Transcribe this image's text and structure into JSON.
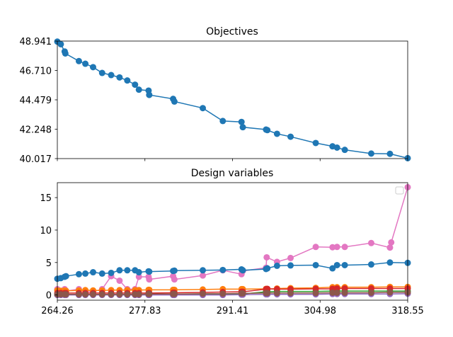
{
  "figure": {
    "background": "#ffffff"
  },
  "chart_data": [
    {
      "type": "line",
      "title": "Objectives",
      "xlabel": "",
      "ylabel": "",
      "xlim": [
        264.26,
        318.55
      ],
      "ylim": [
        40.017,
        48.941
      ],
      "xticks": [
        "264.26",
        "277.83",
        "291.41",
        "304.98",
        "318.55"
      ],
      "yticks": [
        "40.017",
        "42.248",
        "44.479",
        "46.710",
        "48.941"
      ],
      "show_xtick_labels": false,
      "grid": false,
      "marker": "circle",
      "series": [
        {
          "color": "#1f77b4",
          "points": [
            [
              264.26,
              48.9
            ],
            [
              264.8,
              48.7
            ],
            [
              265.4,
              48.15
            ],
            [
              265.5,
              48.0
            ],
            [
              267.6,
              47.42
            ],
            [
              268.6,
              47.22
            ],
            [
              269.8,
              46.96
            ],
            [
              271.2,
              46.52
            ],
            [
              272.6,
              46.36
            ],
            [
              273.9,
              46.18
            ],
            [
              275.1,
              45.95
            ],
            [
              276.3,
              45.63
            ],
            [
              276.9,
              45.25
            ],
            [
              278.4,
              45.18
            ],
            [
              278.5,
              44.85
            ],
            [
              282.2,
              44.55
            ],
            [
              282.4,
              44.35
            ],
            [
              286.8,
              43.85
            ],
            [
              289.9,
              42.87
            ],
            [
              292.8,
              42.8
            ],
            [
              293.0,
              42.4
            ],
            [
              296.6,
              42.22
            ],
            [
              296.8,
              42.18
            ],
            [
              298.3,
              41.9
            ],
            [
              300.4,
              41.68
            ],
            [
              304.3,
              41.2
            ],
            [
              306.9,
              40.95
            ],
            [
              307.6,
              40.85
            ],
            [
              308.8,
              40.68
            ],
            [
              312.9,
              40.4
            ],
            [
              315.8,
              40.38
            ],
            [
              318.55,
              40.05
            ]
          ]
        }
      ]
    },
    {
      "type": "line",
      "title": "Design variables",
      "xlabel": "",
      "ylabel": "",
      "xlim": [
        264.26,
        318.55
      ],
      "ylim": [
        -0.8,
        17.3
      ],
      "xticks": [
        "264.26",
        "277.83",
        "291.41",
        "304.98",
        "318.55"
      ],
      "yticks": [
        "0",
        "5",
        "10",
        "15"
      ],
      "yticks_values": [
        0,
        5,
        10,
        15
      ],
      "grid": false,
      "legend": "top-right (empty)",
      "marker": "circle",
      "series": [
        {
          "color": "#e377c2",
          "points": [
            [
              264.26,
              0.9
            ],
            [
              264.8,
              0.6
            ],
            [
              265.4,
              0.9
            ],
            [
              265.6,
              0.6
            ],
            [
              267.6,
              0.9
            ],
            [
              268.6,
              0.6
            ],
            [
              269.8,
              0.5
            ],
            [
              271.2,
              0.9
            ],
            [
              272.6,
              2.9
            ],
            [
              273.9,
              2.2
            ],
            [
              275.1,
              0.9
            ],
            [
              276.3,
              0.9
            ],
            [
              276.9,
              2.8
            ],
            [
              278.4,
              2.8
            ],
            [
              278.5,
              2.4
            ],
            [
              282.2,
              2.9
            ],
            [
              282.4,
              2.4
            ],
            [
              286.8,
              3.0
            ],
            [
              289.9,
              3.8
            ],
            [
              292.8,
              3.2
            ],
            [
              293.0,
              3.7
            ],
            [
              296.6,
              4.2
            ],
            [
              296.7,
              5.8
            ],
            [
              298.3,
              5.1
            ],
            [
              300.4,
              5.7
            ],
            [
              304.3,
              7.4
            ],
            [
              306.9,
              7.35
            ],
            [
              307.6,
              7.4
            ],
            [
              308.8,
              7.4
            ],
            [
              312.9,
              8.0
            ],
            [
              315.8,
              7.3
            ],
            [
              316.0,
              8.1
            ],
            [
              318.55,
              16.6
            ]
          ]
        },
        {
          "color": "#1f77b4",
          "points": [
            [
              264.26,
              2.5
            ],
            [
              264.8,
              2.6
            ],
            [
              265.4,
              2.8
            ],
            [
              265.6,
              2.9
            ],
            [
              267.6,
              3.2
            ],
            [
              268.6,
              3.3
            ],
            [
              269.8,
              3.5
            ],
            [
              271.2,
              3.3
            ],
            [
              272.6,
              3.4
            ],
            [
              273.9,
              3.8
            ],
            [
              275.1,
              3.8
            ],
            [
              276.3,
              3.8
            ],
            [
              276.9,
              3.5
            ],
            [
              278.4,
              3.65
            ],
            [
              278.5,
              3.6
            ],
            [
              282.2,
              3.7
            ],
            [
              282.4,
              3.75
            ],
            [
              286.8,
              3.8
            ],
            [
              289.9,
              3.85
            ],
            [
              292.8,
              3.95
            ],
            [
              293.0,
              3.8
            ],
            [
              296.6,
              4.0
            ],
            [
              296.8,
              4.1
            ],
            [
              298.3,
              4.5
            ],
            [
              300.4,
              4.55
            ],
            [
              304.3,
              4.6
            ],
            [
              306.9,
              4.1
            ],
            [
              307.6,
              4.6
            ],
            [
              308.8,
              4.6
            ],
            [
              312.9,
              4.7
            ],
            [
              315.8,
              5.0
            ],
            [
              318.55,
              4.95
            ]
          ]
        },
        {
          "color": "#ff7f0e",
          "points": [
            [
              264.26,
              0.7
            ],
            [
              264.8,
              0.65
            ],
            [
              265.4,
              0.7
            ],
            [
              265.6,
              0.65
            ],
            [
              267.6,
              0.7
            ],
            [
              268.6,
              0.75
            ],
            [
              269.8,
              0.7
            ],
            [
              271.2,
              0.7
            ],
            [
              272.6,
              0.75
            ],
            [
              273.9,
              0.75
            ],
            [
              275.1,
              0.75
            ],
            [
              276.3,
              0.75
            ],
            [
              276.9,
              0.75
            ],
            [
              278.4,
              0.8
            ],
            [
              278.5,
              0.8
            ],
            [
              282.2,
              0.8
            ],
            [
              282.4,
              0.8
            ],
            [
              286.8,
              0.85
            ],
            [
              289.9,
              0.9
            ],
            [
              292.8,
              0.9
            ],
            [
              293.0,
              0.9
            ],
            [
              296.6,
              0.95
            ],
            [
              296.8,
              0.9
            ],
            [
              298.3,
              1.0
            ],
            [
              300.4,
              1.05
            ],
            [
              304.3,
              1.1
            ],
            [
              306.9,
              1.2
            ],
            [
              307.6,
              1.2
            ],
            [
              308.8,
              1.2
            ],
            [
              312.9,
              1.2
            ],
            [
              315.8,
              1.25
            ],
            [
              318.55,
              1.25
            ]
          ]
        },
        {
          "color": "#2ca02c",
          "points": [
            [
              264.26,
              0.05
            ],
            [
              264.8,
              0.05
            ],
            [
              265.4,
              0.05
            ],
            [
              265.6,
              0.05
            ],
            [
              267.6,
              0.05
            ],
            [
              268.6,
              0.05
            ],
            [
              269.8,
              0.05
            ],
            [
              271.2,
              0.05
            ],
            [
              272.6,
              0.05
            ],
            [
              273.9,
              0.05
            ],
            [
              275.1,
              0.05
            ],
            [
              276.3,
              0.05
            ],
            [
              276.9,
              0.05
            ],
            [
              278.4,
              0.05
            ],
            [
              278.5,
              0.05
            ],
            [
              282.2,
              0.05
            ],
            [
              282.4,
              0.05
            ],
            [
              286.8,
              0.1
            ],
            [
              289.9,
              0.1
            ],
            [
              292.8,
              0.15
            ],
            [
              293.0,
              0.15
            ],
            [
              296.6,
              0.5
            ],
            [
              296.8,
              0.5
            ],
            [
              298.3,
              0.55
            ],
            [
              300.4,
              0.55
            ],
            [
              304.3,
              0.55
            ],
            [
              306.9,
              0.6
            ],
            [
              307.6,
              0.6
            ],
            [
              308.8,
              0.6
            ],
            [
              312.9,
              0.6
            ],
            [
              315.8,
              0.6
            ],
            [
              318.55,
              0.6
            ]
          ]
        },
        {
          "color": "#d62728",
          "points": [
            [
              264.26,
              0.3
            ],
            [
              264.8,
              0.3
            ],
            [
              265.4,
              0.3
            ],
            [
              265.6,
              0.3
            ],
            [
              267.6,
              0.3
            ],
            [
              268.6,
              0.3
            ],
            [
              269.8,
              0.3
            ],
            [
              271.2,
              0.3
            ],
            [
              272.6,
              0.3
            ],
            [
              273.9,
              0.3
            ],
            [
              275.1,
              0.3
            ],
            [
              276.3,
              0.3
            ],
            [
              276.9,
              0.3
            ],
            [
              278.4,
              0.3
            ],
            [
              278.5,
              0.3
            ],
            [
              282.2,
              0.35
            ],
            [
              282.4,
              0.35
            ],
            [
              286.8,
              0.4
            ],
            [
              289.9,
              0.45
            ],
            [
              292.8,
              0.5
            ],
            [
              293.0,
              0.5
            ],
            [
              296.6,
              0.9
            ],
            [
              296.8,
              0.95
            ],
            [
              298.3,
              0.9
            ],
            [
              300.4,
              0.9
            ],
            [
              304.3,
              0.95
            ],
            [
              306.9,
              0.95
            ],
            [
              307.6,
              1.0
            ],
            [
              308.8,
              1.0
            ],
            [
              312.9,
              1.0
            ],
            [
              315.8,
              1.0
            ],
            [
              318.55,
              1.0
            ]
          ]
        },
        {
          "color": "#9467bd",
          "points": [
            [
              264.26,
              0.0
            ],
            [
              264.8,
              0.0
            ],
            [
              265.4,
              0.0
            ],
            [
              265.6,
              0.0
            ],
            [
              267.6,
              0.0
            ],
            [
              268.6,
              0.0
            ],
            [
              269.8,
              0.0
            ],
            [
              271.2,
              0.0
            ],
            [
              272.6,
              0.0
            ],
            [
              273.9,
              0.0
            ],
            [
              275.1,
              0.0
            ],
            [
              276.3,
              0.0
            ],
            [
              276.9,
              0.0
            ],
            [
              278.4,
              0.0
            ],
            [
              278.5,
              0.0
            ],
            [
              282.2,
              0.0
            ],
            [
              282.4,
              0.0
            ],
            [
              286.8,
              0.0
            ],
            [
              289.9,
              0.0
            ],
            [
              292.8,
              0.05
            ],
            [
              293.0,
              0.05
            ],
            [
              296.6,
              0.1
            ],
            [
              296.8,
              0.1
            ],
            [
              298.3,
              0.1
            ],
            [
              300.4,
              0.1
            ],
            [
              304.3,
              0.1
            ],
            [
              306.9,
              0.15
            ],
            [
              307.6,
              0.15
            ],
            [
              308.8,
              0.15
            ],
            [
              312.9,
              0.15
            ],
            [
              315.8,
              0.15
            ],
            [
              318.55,
              0.2
            ]
          ]
        },
        {
          "color": "#8c564b",
          "points": [
            [
              264.26,
              0.1
            ],
            [
              264.8,
              0.1
            ],
            [
              265.4,
              0.1
            ],
            [
              265.6,
              0.1
            ],
            [
              267.6,
              0.1
            ],
            [
              268.6,
              0.1
            ],
            [
              269.8,
              0.1
            ],
            [
              271.2,
              0.1
            ],
            [
              272.6,
              0.1
            ],
            [
              273.9,
              0.1
            ],
            [
              275.1,
              0.1
            ],
            [
              276.3,
              0.1
            ],
            [
              276.9,
              0.1
            ],
            [
              278.4,
              0.15
            ],
            [
              278.5,
              0.15
            ],
            [
              282.2,
              0.15
            ],
            [
              282.4,
              0.15
            ],
            [
              286.8,
              0.2
            ],
            [
              289.9,
              0.2
            ],
            [
              292.8,
              0.25
            ],
            [
              293.0,
              0.25
            ],
            [
              296.6,
              0.3
            ],
            [
              296.8,
              0.3
            ],
            [
              298.3,
              0.3
            ],
            [
              300.4,
              0.3
            ],
            [
              304.3,
              0.3
            ],
            [
              306.9,
              0.35
            ],
            [
              307.6,
              0.35
            ],
            [
              308.8,
              0.35
            ],
            [
              312.9,
              0.35
            ],
            [
              315.8,
              0.4
            ],
            [
              318.55,
              0.4
            ]
          ]
        }
      ]
    }
  ]
}
